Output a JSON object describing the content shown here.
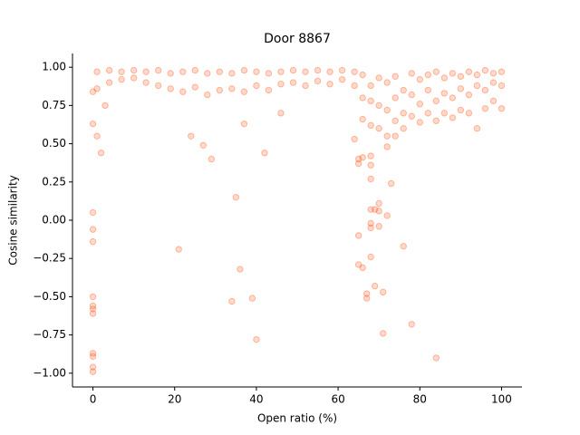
{
  "chart_data": {
    "type": "scatter",
    "title": "Door 8867",
    "x_label": "Open ratio (%)",
    "y_label": "Cosine similarity",
    "color": "#ff4500",
    "x": [
      0,
      0,
      0,
      0,
      0,
      0,
      0,
      0,
      0,
      0,
      0,
      0,
      0,
      1,
      2,
      3,
      21,
      24,
      27,
      29,
      34,
      35,
      36,
      39,
      40,
      42,
      37,
      46,
      65,
      65,
      65,
      65,
      66,
      66,
      67,
      67,
      68,
      68,
      68,
      68,
      68,
      68,
      68,
      69,
      69,
      70,
      70,
      70,
      71,
      71,
      72,
      73,
      76,
      78,
      84,
      64,
      72,
      74,
      1,
      1,
      4,
      4,
      7,
      7,
      10,
      10,
      13,
      13,
      16,
      16,
      19,
      19,
      22,
      22,
      25,
      25,
      28,
      28,
      31,
      31,
      34,
      34,
      37,
      37,
      40,
      40,
      43,
      43,
      46,
      46,
      49,
      49,
      52,
      52,
      55,
      55,
      58,
      58,
      61,
      61,
      64,
      64,
      66,
      66,
      66,
      68,
      68,
      68,
      70,
      70,
      70,
      72,
      72,
      72,
      74,
      74,
      74,
      76,
      76,
      76,
      78,
      78,
      78,
      80,
      80,
      80,
      82,
      82,
      82,
      84,
      84,
      84,
      86,
      86,
      86,
      88,
      88,
      88,
      90,
      90,
      90,
      92,
      92,
      92,
      94,
      94,
      94,
      96,
      96,
      96,
      98,
      98,
      98,
      100,
      100,
      100
    ],
    "values": [
      0.05,
      -0.06,
      -0.14,
      -0.5,
      -0.56,
      -0.58,
      -0.61,
      -0.87,
      -0.89,
      -0.96,
      -0.99,
      0.63,
      0.84,
      0.55,
      0.44,
      0.75,
      -0.19,
      0.55,
      0.49,
      0.4,
      -0.53,
      0.15,
      -0.32,
      -0.51,
      -0.78,
      0.44,
      0.63,
      0.7,
      0.4,
      0.37,
      -0.1,
      -0.29,
      -0.31,
      0.41,
      -0.48,
      -0.51,
      0.42,
      0.36,
      0.27,
      0.07,
      -0.02,
      -0.05,
      -0.24,
      -0.43,
      0.07,
      0.11,
      0.06,
      -0.04,
      -0.47,
      -0.74,
      0.03,
      0.24,
      -0.17,
      -0.68,
      -0.9,
      0.53,
      0.48,
      0.55,
      0.97,
      0.86,
      0.98,
      0.9,
      0.97,
      0.92,
      0.98,
      0.93,
      0.97,
      0.9,
      0.98,
      0.88,
      0.96,
      0.86,
      0.97,
      0.84,
      0.98,
      0.87,
      0.96,
      0.82,
      0.97,
      0.85,
      0.96,
      0.86,
      0.98,
      0.84,
      0.97,
      0.88,
      0.96,
      0.85,
      0.97,
      0.89,
      0.98,
      0.9,
      0.97,
      0.88,
      0.98,
      0.91,
      0.97,
      0.89,
      0.98,
      0.92,
      0.97,
      0.88,
      0.95,
      0.8,
      0.66,
      0.88,
      0.78,
      0.62,
      0.93,
      0.75,
      0.6,
      0.9,
      0.72,
      0.55,
      0.94,
      0.8,
      0.65,
      0.85,
      0.7,
      0.6,
      0.96,
      0.82,
      0.68,
      0.92,
      0.76,
      0.64,
      0.95,
      0.85,
      0.7,
      0.97,
      0.78,
      0.65,
      0.93,
      0.83,
      0.7,
      0.96,
      0.8,
      0.67,
      0.94,
      0.86,
      0.72,
      0.97,
      0.82,
      0.7,
      0.95,
      0.88,
      0.6,
      0.98,
      0.85,
      0.73,
      0.96,
      0.9,
      0.78,
      0.97,
      0.88,
      0.73
    ],
    "xlim": [
      -5,
      105
    ],
    "ylim": [
      -1.09,
      1.09
    ],
    "xticks": [
      0,
      20,
      40,
      60,
      80,
      100
    ],
    "yticks": [
      {
        "value": 1,
        "label": "1.00"
      },
      {
        "value": 0.75,
        "label": "0.75"
      },
      {
        "value": 0.5,
        "label": "0.50"
      },
      {
        "value": 0.25,
        "label": "0.25"
      },
      {
        "value": 0,
        "label": "0.00"
      },
      {
        "value": -0.25,
        "label": "−0.25"
      },
      {
        "value": -0.5,
        "label": "−0.50"
      },
      {
        "value": -0.75,
        "label": "−0.75"
      },
      {
        "value": -1,
        "label": "−1.00"
      }
    ]
  }
}
